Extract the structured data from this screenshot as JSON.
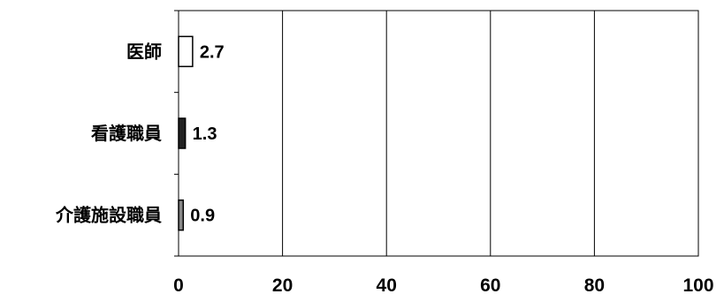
{
  "chart_data": {
    "type": "bar",
    "orientation": "horizontal",
    "title": "",
    "xlabel": "",
    "ylabel": "",
    "categories": [
      "医師",
      "看護職員",
      "介護施設職員"
    ],
    "values": [
      2.7,
      1.3,
      0.9
    ],
    "data_labels": [
      "2.7",
      "1.3",
      "0.9"
    ],
    "xlim": [
      0,
      100
    ],
    "x_ticks": [
      "0",
      "20",
      "40",
      "60",
      "80",
      "100"
    ],
    "grid": "vertical",
    "legend": "none",
    "bar_colors": [
      "#ffffff",
      "#222222",
      "#888888"
    ]
  }
}
